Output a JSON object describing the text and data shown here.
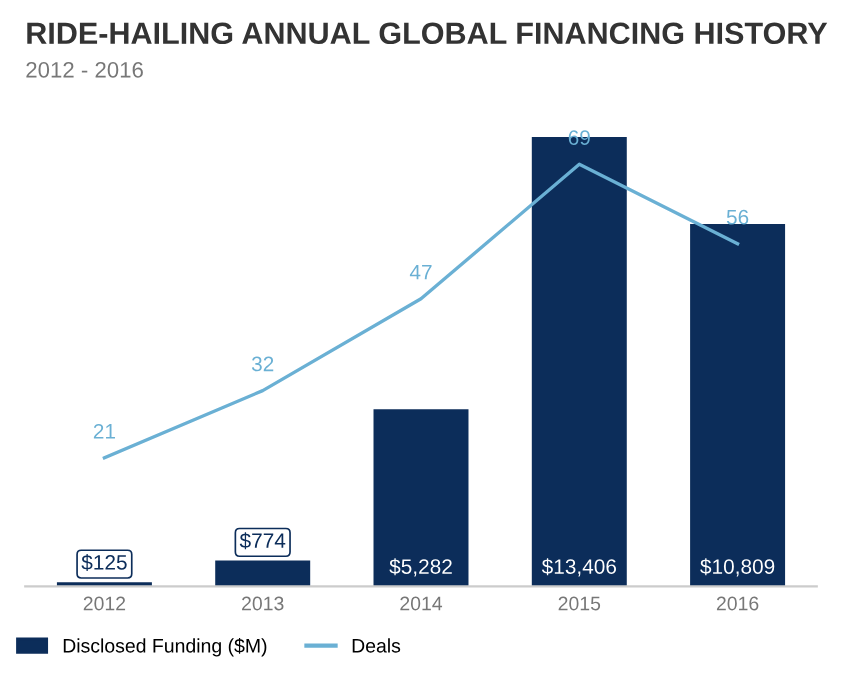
{
  "chart_data": {
    "type": "bar",
    "title": "RIDE-HAILING ANNUAL GLOBAL FINANCING HISTORY",
    "subtitle": "2012 - 2016",
    "categories": [
      "2012",
      "2013",
      "2014",
      "2015",
      "2016"
    ],
    "series": [
      {
        "name": "Disclosed Funding ($M)",
        "color": "#0c2d5a",
        "values": [
          125,
          774,
          5282,
          13406,
          10809
        ],
        "value_labels": [
          "$125",
          "$774",
          "$5,282",
          "$13,406",
          "$10,809"
        ]
      },
      {
        "name": "Deals",
        "type": "line",
        "axis": "y2",
        "color": "#6ab0d4",
        "values": [
          21,
          32,
          47,
          69,
          56
        ],
        "value_labels": [
          "21",
          "32",
          "47",
          "69",
          "56"
        ]
      }
    ],
    "tick_labels": "x",
    "legend": "bottom left",
    "grid": false
  }
}
